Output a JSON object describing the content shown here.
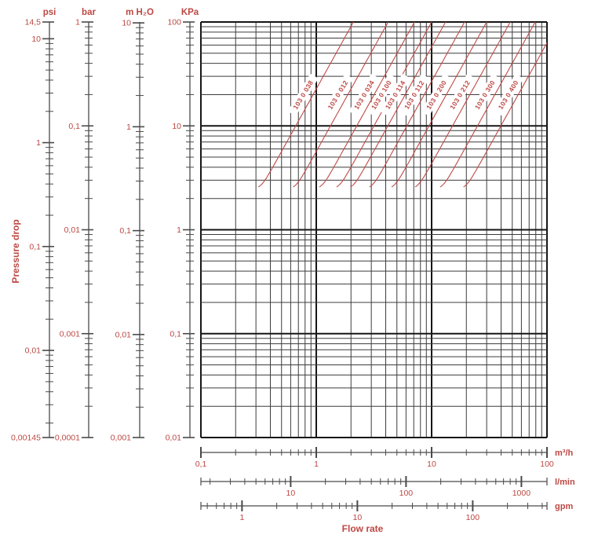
{
  "colors": {
    "accent_red": "#bc4843",
    "curve_red": "#c04a45",
    "grid_minor": "#3c3c3c",
    "grid_major": "#161616",
    "ruler_line": "#4a4a4a",
    "background": "#ffffff"
  },
  "labels": {
    "pressure_axis": "Pressure drop",
    "flow_axis": "Flow rate"
  },
  "pressure_scales": [
    {
      "unit": "psi",
      "top_value": 14.5,
      "bottom_value": 0.00145,
      "end_labels": {
        "top": "14,5",
        "bottom": "0,00145"
      },
      "decade_labels": [
        {
          "text": "10",
          "value": 10
        },
        {
          "text": "1",
          "value": 1
        },
        {
          "text": "0,1",
          "value": 0.1
        },
        {
          "text": "0,01",
          "value": 0.01
        }
      ]
    },
    {
      "unit": "bar",
      "top_value": 1,
      "bottom_value": 0.0001,
      "end_labels": {},
      "decade_labels": [
        {
          "text": "1",
          "value": 1
        },
        {
          "text": "0,1",
          "value": 0.1
        },
        {
          "text": "0,01",
          "value": 0.01
        },
        {
          "text": "0,001",
          "value": 0.001
        },
        {
          "text": "0,0001",
          "value": 0.0001
        }
      ]
    },
    {
      "unit": "m H₂O",
      "top_value": 10.197,
      "bottom_value": 0.0010197,
      "end_labels": {
        "bottom": "0,001"
      },
      "decade_labels": [
        {
          "text": "10",
          "value": 10
        },
        {
          "text": "1",
          "value": 1
        },
        {
          "text": "0,1",
          "value": 0.1
        },
        {
          "text": "0,01",
          "value": 0.01
        }
      ]
    },
    {
      "unit": "KPa",
      "top_value": 100,
      "bottom_value": 0.01,
      "end_labels": {},
      "decade_labels": [
        {
          "text": "100",
          "value": 100
        },
        {
          "text": "10",
          "value": 10
        },
        {
          "text": "1",
          "value": 1
        },
        {
          "text": "0,1",
          "value": 0.1
        },
        {
          "text": "0,01",
          "value": 0.01
        }
      ]
    }
  ],
  "flow_axes": [
    {
      "unit": "m³/h",
      "left_value": 0.1,
      "right_value": 100,
      "decade_labels": [
        {
          "text": "0,1",
          "value": 0.1
        },
        {
          "text": "1",
          "value": 1
        },
        {
          "text": "10",
          "value": 10
        },
        {
          "text": "100",
          "value": 100
        }
      ]
    },
    {
      "unit": "l/min",
      "left_value": 1.6667,
      "right_value": 1666.7,
      "decade_labels": [
        {
          "text": "10",
          "value": 10
        },
        {
          "text": "100",
          "value": 100
        },
        {
          "text": "1000",
          "value": 1000
        }
      ]
    },
    {
      "unit": "gpm",
      "left_value": 0.4403,
      "right_value": 440.3,
      "decade_labels": [
        {
          "text": "1",
          "value": 1
        },
        {
          "text": "10",
          "value": 10
        },
        {
          "text": "100",
          "value": 100
        }
      ]
    }
  ],
  "chart_data": {
    "type": "line",
    "title": "",
    "x_axis": {
      "label": "Flow rate",
      "unit": "m³/h",
      "range": [
        0.1,
        100
      ],
      "scale": "log",
      "grid": true
    },
    "y_axis": {
      "label": "Pressure drop",
      "unit": "KPa",
      "range": [
        0.01,
        100
      ],
      "scale": "log",
      "grid": true
    },
    "min_pressure_kpa": 2.45,
    "curve_model": "dp_kpa = max(min_pressure_kpa, (Q_m3h / kv)^2 * 100)",
    "series": [
      {
        "name": "103 0 038",
        "kv": 2.1
      },
      {
        "name": "103 0 012",
        "kv": 4.2
      },
      {
        "name": "103 0 034",
        "kv": 7.1
      },
      {
        "name": "103 0 100",
        "kv": 10
      },
      {
        "name": "103 0 114",
        "kv": 13.2
      },
      {
        "name": "103 0 112",
        "kv": 19.3
      },
      {
        "name": "103 0 200",
        "kv": 30
      },
      {
        "name": "103 0 212",
        "kv": 48
      },
      {
        "name": "103 0 300",
        "kv": 79
      },
      {
        "name": "103 0 400",
        "kv": 126
      }
    ]
  }
}
